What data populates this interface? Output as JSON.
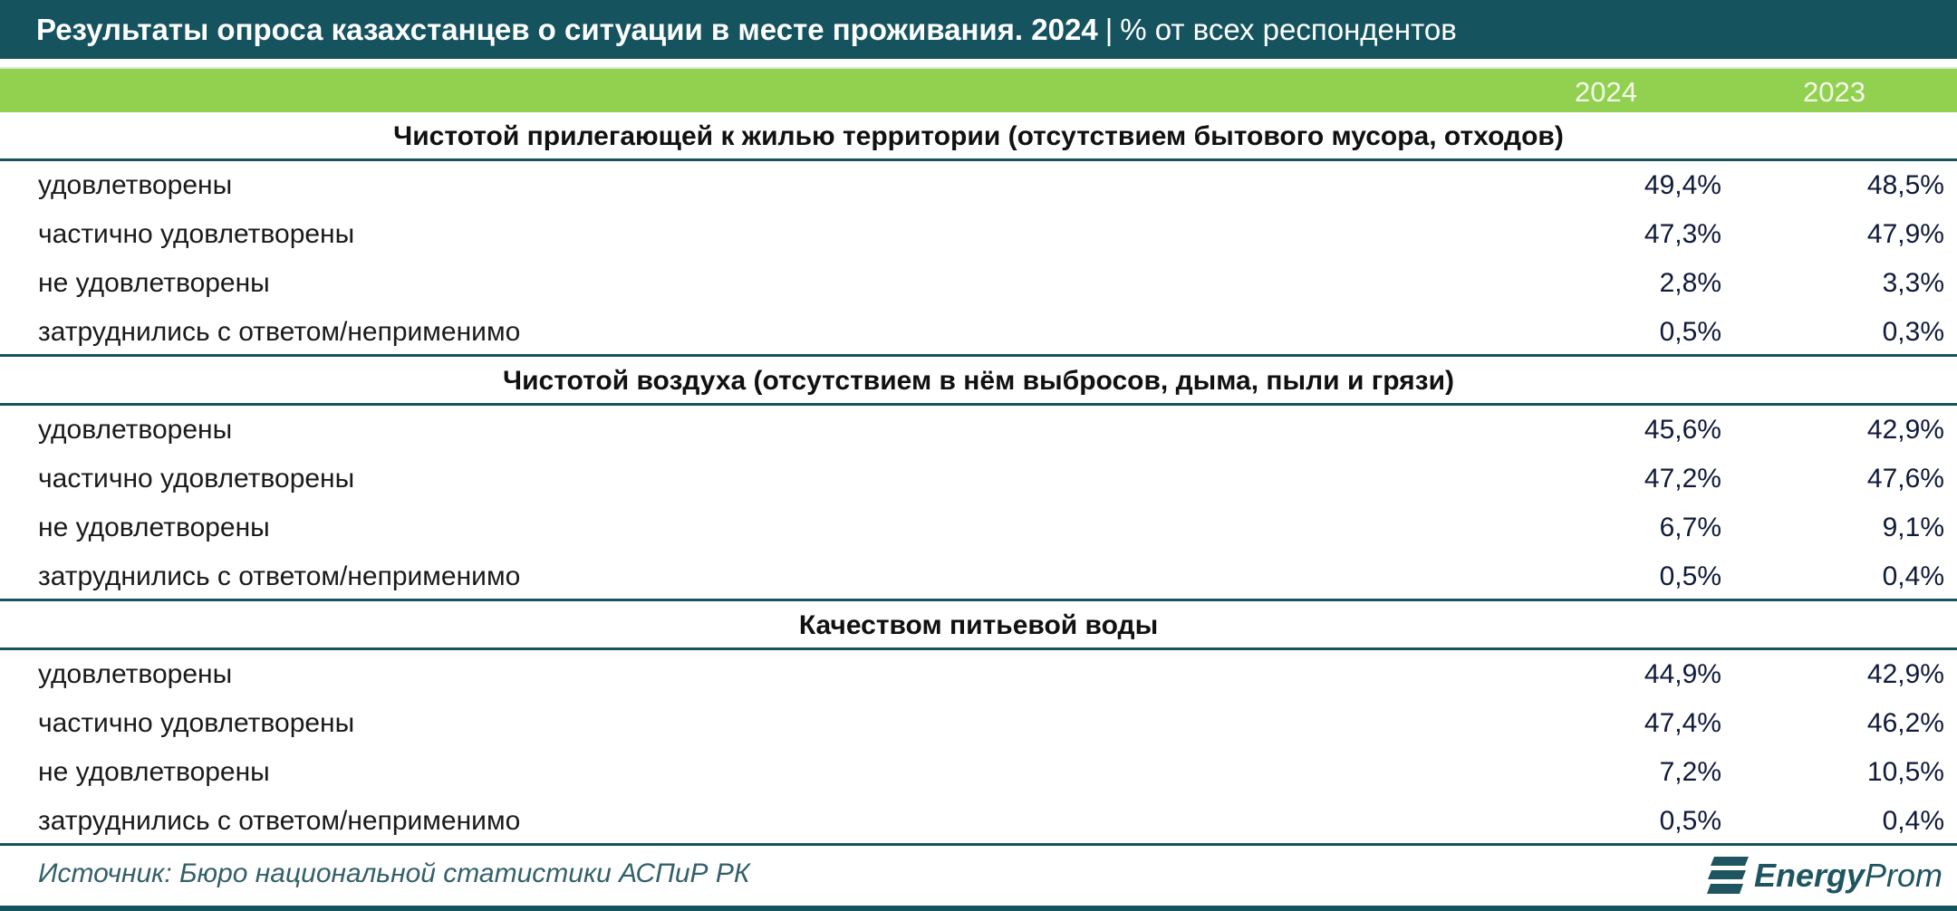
{
  "header": {
    "title": "Результаты опроса казахстанцев о ситуации в месте проживания. 2024",
    "separator": "|",
    "subtitle": "% от всех респондентов"
  },
  "columns": [
    "2024",
    "2023"
  ],
  "sections": [
    {
      "title": "Чистотой прилегающей к жилью территории (отсутствием бытового мусора, отходов)",
      "rows": [
        {
          "label": "удовлетворены",
          "v2024": "49,4%",
          "v2023": "48,5%"
        },
        {
          "label": "частично удовлетворены",
          "v2024": "47,3%",
          "v2023": "47,9%"
        },
        {
          "label": "не удовлетворены",
          "v2024": "2,8%",
          "v2023": "3,3%"
        },
        {
          "label": "затруднились с ответом/неприменимо",
          "v2024": "0,5%",
          "v2023": "0,3%"
        }
      ]
    },
    {
      "title": "Чистотой воздуха (отсутствием в нём выбросов, дыма, пыли и грязи)",
      "rows": [
        {
          "label": "удовлетворены",
          "v2024": "45,6%",
          "v2023": "42,9%"
        },
        {
          "label": "частично удовлетворены",
          "v2024": "47,2%",
          "v2023": "47,6%"
        },
        {
          "label": "не удовлетворены",
          "v2024": "6,7%",
          "v2023": "9,1%"
        },
        {
          "label": "затруднились с ответом/неприменимо",
          "v2024": "0,5%",
          "v2023": "0,4%"
        }
      ]
    },
    {
      "title": "Качеством питьевой воды",
      "rows": [
        {
          "label": "удовлетворены",
          "v2024": "44,9%",
          "v2023": "42,9%"
        },
        {
          "label": "частично удовлетворены",
          "v2024": "47,4%",
          "v2023": "46,2%"
        },
        {
          "label": "не удовлетворены",
          "v2024": "7,2%",
          "v2023": "10,5%"
        },
        {
          "label": "затруднились с ответом/неприменимо",
          "v2024": "0,5%",
          "v2023": "0,4%"
        }
      ]
    }
  ],
  "footer": {
    "source": "Источник: Бюро национальной статистики АСПиР РК",
    "logo_text_1": "Energy",
    "logo_text_2": "Prom"
  },
  "colors": {
    "header_bg": "#15545f",
    "years_bg": "#92d050"
  }
}
